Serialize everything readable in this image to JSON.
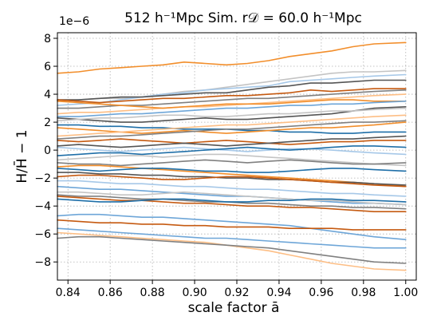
{
  "chart_data": {
    "type": "line",
    "title": "512 h⁻¹Mpc Sim. r𝒟 = 60.0 h⁻¹Mpc",
    "xlabel": "scale factor ā",
    "ylabel": "H/H̄ − 1",
    "y_offset_label": "1e−6",
    "xlim": [
      0.835,
      1.005
    ],
    "ylim": [
      -9.3,
      8.4
    ],
    "x_ticks": [
      0.84,
      0.86,
      0.88,
      0.9,
      0.92,
      0.94,
      0.96,
      0.98,
      1.0
    ],
    "x_tick_labels": [
      "0.84",
      "0.86",
      "0.88",
      "0.90",
      "0.92",
      "0.94",
      "0.96",
      "0.98",
      "1.00"
    ],
    "y_ticks": [
      -8,
      -6,
      -4,
      -2,
      0,
      2,
      4,
      6,
      8
    ],
    "y_tick_labels": [
      "−8",
      "−6",
      "−4",
      "−2",
      "0",
      "2",
      "4",
      "6",
      "8"
    ],
    "grid": true,
    "x": [
      0.835,
      0.845,
      0.855,
      0.865,
      0.875,
      0.885,
      0.895,
      0.905,
      0.915,
      0.925,
      0.935,
      0.945,
      0.955,
      0.965,
      0.975,
      0.985,
      1.0
    ],
    "series": [
      {
        "color": "#f28e2b",
        "values": [
          5.5,
          5.6,
          5.8,
          5.9,
          6.0,
          6.1,
          6.3,
          6.2,
          6.1,
          6.2,
          6.4,
          6.7,
          6.9,
          7.1,
          7.4,
          7.6,
          7.7
        ]
      },
      {
        "color": "#c4c4c4",
        "values": [
          3.5,
          3.6,
          3.7,
          3.7,
          3.8,
          4.0,
          4.2,
          4.3,
          4.5,
          4.7,
          4.9,
          5.1,
          5.3,
          5.5,
          5.6,
          5.6,
          5.7
        ]
      },
      {
        "color": "#a6c8e8",
        "values": [
          3.2,
          3.3,
          3.4,
          3.6,
          3.8,
          4.0,
          4.1,
          4.3,
          4.4,
          4.5,
          4.6,
          4.9,
          5.0,
          5.1,
          5.2,
          5.3,
          5.4
        ]
      },
      {
        "color": "#555555",
        "values": [
          3.6,
          3.6,
          3.7,
          3.8,
          3.8,
          3.9,
          4.0,
          4.1,
          4.1,
          4.3,
          4.5,
          4.6,
          4.8,
          4.8,
          4.9,
          5.0,
          5.0
        ]
      },
      {
        "color": "#c55a11",
        "values": [
          3.6,
          3.5,
          3.4,
          3.5,
          3.6,
          3.7,
          3.7,
          3.8,
          3.9,
          3.9,
          4.0,
          4.1,
          4.3,
          4.2,
          4.3,
          4.4,
          4.4
        ]
      },
      {
        "color": "#808080",
        "values": [
          3.0,
          3.0,
          3.1,
          3.2,
          3.2,
          3.3,
          3.4,
          3.5,
          3.6,
          3.7,
          3.7,
          3.8,
          3.9,
          4.0,
          4.1,
          4.2,
          4.3
        ]
      },
      {
        "color": "#fdbe85",
        "values": [
          2.6,
          2.7,
          2.7,
          2.8,
          2.9,
          3.0,
          3.1,
          3.1,
          3.2,
          3.3,
          3.4,
          3.5,
          3.6,
          3.7,
          3.8,
          3.9,
          4.0
        ]
      },
      {
        "color": "#f28e2b",
        "values": [
          3.5,
          3.4,
          3.3,
          3.2,
          3.1,
          3.0,
          3.1,
          3.2,
          3.3,
          3.3,
          3.3,
          3.4,
          3.5,
          3.6,
          3.6,
          3.5,
          3.5
        ]
      },
      {
        "color": "#6ea6d8",
        "values": [
          2.4,
          2.4,
          2.5,
          2.6,
          2.6,
          2.7,
          2.8,
          2.9,
          3.0,
          3.0,
          3.1,
          3.2,
          3.2,
          3.3,
          3.3,
          3.4,
          3.5
        ]
      },
      {
        "color": "#555555",
        "values": [
          2.3,
          2.2,
          2.1,
          2.0,
          2.0,
          2.1,
          2.2,
          2.3,
          2.2,
          2.2,
          2.3,
          2.4,
          2.5,
          2.6,
          2.8,
          3.0,
          3.1
        ]
      },
      {
        "color": "#c4c4c4",
        "values": [
          2.1,
          2.2,
          2.3,
          2.3,
          2.4,
          2.5,
          2.5,
          2.4,
          2.4,
          2.5,
          2.6,
          2.6,
          2.7,
          2.8,
          2.8,
          2.9,
          3.0
        ]
      },
      {
        "color": "#1f6fa8",
        "values": [
          1.8,
          1.8,
          1.7,
          1.7,
          1.6,
          1.6,
          1.5,
          1.5,
          1.5,
          1.4,
          1.4,
          1.3,
          1.3,
          1.2,
          1.2,
          1.3,
          1.3
        ]
      },
      {
        "color": "#f28e2b",
        "values": [
          1.6,
          1.5,
          1.4,
          1.3,
          1.2,
          1.3,
          1.4,
          1.3,
          1.2,
          1.3,
          1.4,
          1.5,
          1.6,
          1.6,
          1.7,
          1.8,
          2.0
        ]
      },
      {
        "color": "#fdbe85",
        "values": [
          1.0,
          1.1,
          1.2,
          1.3,
          1.4,
          1.5,
          1.6,
          1.7,
          1.8,
          1.8,
          1.9,
          2.0,
          2.1,
          2.2,
          2.3,
          2.4,
          2.5
        ]
      },
      {
        "color": "#808080",
        "values": [
          0.8,
          0.9,
          1.0,
          1.0,
          1.1,
          1.2,
          1.3,
          1.4,
          1.5,
          1.5,
          1.6,
          1.7,
          1.8,
          1.9,
          2.0,
          2.0,
          2.1
        ]
      },
      {
        "color": "#c55a11",
        "values": [
          0.7,
          0.6,
          0.7,
          0.8,
          0.7,
          0.6,
          0.5,
          0.6,
          0.7,
          0.6,
          0.5,
          0.4,
          0.5,
          0.6,
          0.6,
          0.7,
          0.7
        ]
      },
      {
        "color": "#555555",
        "values": [
          0.3,
          0.4,
          0.3,
          0.2,
          0.3,
          0.4,
          0.5,
          0.4,
          0.3,
          0.4,
          0.5,
          0.6,
          0.7,
          0.8,
          0.8,
          0.9,
          1.0
        ]
      },
      {
        "color": "#a6c8e8",
        "values": [
          0.2,
          0.1,
          0.0,
          -0.1,
          0.0,
          0.1,
          0.2,
          0.1,
          0.0,
          -0.1,
          0.0,
          0.1,
          0.1,
          0.0,
          -0.1,
          -0.2,
          -0.3
        ]
      },
      {
        "color": "#1f6fa8",
        "values": [
          -0.4,
          -0.3,
          -0.2,
          -0.2,
          -0.3,
          -0.2,
          -0.1,
          0.0,
          0.1,
          0.2,
          0.1,
          0.0,
          0.1,
          0.2,
          0.3,
          0.3,
          0.2
        ]
      },
      {
        "color": "#c4c4c4",
        "values": [
          -0.7,
          -0.6,
          -0.5,
          -0.4,
          -0.4,
          -0.5,
          -0.4,
          -0.3,
          -0.3,
          -0.4,
          -0.5,
          -0.6,
          -0.7,
          -0.8,
          -0.9,
          -1.0,
          -1.1
        ]
      },
      {
        "color": "#808080",
        "values": [
          -0.9,
          -1.0,
          -1.0,
          -1.1,
          -1.0,
          -0.9,
          -0.8,
          -0.7,
          -0.8,
          -0.9,
          -0.8,
          -0.7,
          -0.8,
          -0.9,
          -1.0,
          -1.0,
          -0.9
        ]
      },
      {
        "color": "#f28e2b",
        "values": [
          -1.2,
          -1.1,
          -1.1,
          -1.2,
          -1.3,
          -1.4,
          -1.5,
          -1.6,
          -1.7,
          -1.8,
          -1.9,
          -2.0,
          -2.1,
          -2.2,
          -2.3,
          -2.4,
          -2.6
        ]
      },
      {
        "color": "#1f6fa8",
        "values": [
          -1.3,
          -1.4,
          -1.5,
          -1.4,
          -1.3,
          -1.3,
          -1.4,
          -1.5,
          -1.5,
          -1.6,
          -1.6,
          -1.5,
          -1.4,
          -1.3,
          -1.3,
          -1.4,
          -1.5
        ]
      },
      {
        "color": "#555555",
        "values": [
          -1.6,
          -1.6,
          -1.7,
          -1.7,
          -1.8,
          -1.8,
          -1.9,
          -1.9,
          -2.0,
          -2.0,
          -2.1,
          -2.1,
          -2.2,
          -2.3,
          -2.3,
          -2.4,
          -2.5
        ]
      },
      {
        "color": "#c55a11",
        "values": [
          -1.9,
          -1.8,
          -1.8,
          -1.9,
          -2.0,
          -2.1,
          -2.1,
          -2.0,
          -1.9,
          -1.9,
          -2.0,
          -2.1,
          -2.2,
          -2.3,
          -2.4,
          -2.5,
          -2.6
        ]
      },
      {
        "color": "#a6c8e8",
        "values": [
          -2.2,
          -2.2,
          -2.3,
          -2.4,
          -2.4,
          -2.5,
          -2.6,
          -2.6,
          -2.7,
          -2.8,
          -2.8,
          -2.9,
          -3.0,
          -3.1,
          -3.1,
          -3.2,
          -3.3
        ]
      },
      {
        "color": "#6ea6d8",
        "values": [
          -2.6,
          -2.7,
          -2.8,
          -2.8,
          -2.9,
          -3.0,
          -3.1,
          -3.2,
          -3.3,
          -3.3,
          -3.4,
          -3.5,
          -3.6,
          -3.7,
          -3.8,
          -3.8,
          -3.9
        ]
      },
      {
        "color": "#c4c4c4",
        "values": [
          -3.0,
          -3.0,
          -3.1,
          -3.2,
          -3.2,
          -3.1,
          -3.0,
          -3.1,
          -3.2,
          -3.3,
          -3.4,
          -3.5,
          -3.6,
          -3.6,
          -3.7,
          -3.8,
          -3.9
        ]
      },
      {
        "color": "#808080",
        "values": [
          -3.2,
          -3.3,
          -3.3,
          -3.4,
          -3.5,
          -3.5,
          -3.6,
          -3.7,
          -3.7,
          -3.8,
          -3.8,
          -3.9,
          -4.0,
          -4.0,
          -4.1,
          -4.1,
          -4.2
        ]
      },
      {
        "color": "#c55a11",
        "values": [
          -3.3,
          -3.4,
          -3.5,
          -3.6,
          -3.6,
          -3.7,
          -3.8,
          -3.8,
          -3.9,
          -4.0,
          -4.0,
          -4.1,
          -4.1,
          -4.2,
          -4.3,
          -4.4,
          -4.4
        ]
      },
      {
        "color": "#1f6fa8",
        "values": [
          -3.5,
          -3.6,
          -3.7,
          -3.7,
          -3.6,
          -3.5,
          -3.5,
          -3.6,
          -3.7,
          -3.7,
          -3.6,
          -3.6,
          -3.5,
          -3.5,
          -3.6,
          -3.6,
          -3.7
        ]
      },
      {
        "color": "#6ea6d8",
        "values": [
          -4.7,
          -4.6,
          -4.6,
          -4.7,
          -4.8,
          -4.8,
          -4.9,
          -5.0,
          -5.1,
          -5.2,
          -5.3,
          -5.4,
          -5.6,
          -5.8,
          -6.0,
          -6.2,
          -6.4
        ]
      },
      {
        "color": "#c55a11",
        "values": [
          -5.0,
          -5.1,
          -5.2,
          -5.2,
          -5.3,
          -5.3,
          -5.4,
          -5.4,
          -5.5,
          -5.5,
          -5.5,
          -5.6,
          -5.6,
          -5.6,
          -5.7,
          -5.7,
          -5.7
        ]
      },
      {
        "color": "#fdbe85",
        "values": [
          -5.9,
          -6.0,
          -6.1,
          -6.2,
          -6.3,
          -6.4,
          -6.5,
          -6.6,
          -6.8,
          -7.0,
          -7.2,
          -7.5,
          -7.8,
          -8.1,
          -8.3,
          -8.5,
          -8.6
        ]
      },
      {
        "color": "#808080",
        "values": [
          -6.3,
          -6.2,
          -6.2,
          -6.3,
          -6.4,
          -6.5,
          -6.6,
          -6.7,
          -6.8,
          -6.9,
          -7.0,
          -7.2,
          -7.4,
          -7.6,
          -7.8,
          -8.0,
          -8.1
        ]
      },
      {
        "color": "#6ea6d8",
        "values": [
          -5.6,
          -5.7,
          -5.8,
          -5.9,
          -6.0,
          -6.1,
          -6.2,
          -6.3,
          -6.3,
          -6.4,
          -6.5,
          -6.6,
          -6.7,
          -6.8,
          -6.9,
          -7.0,
          -7.0
        ]
      }
    ]
  }
}
